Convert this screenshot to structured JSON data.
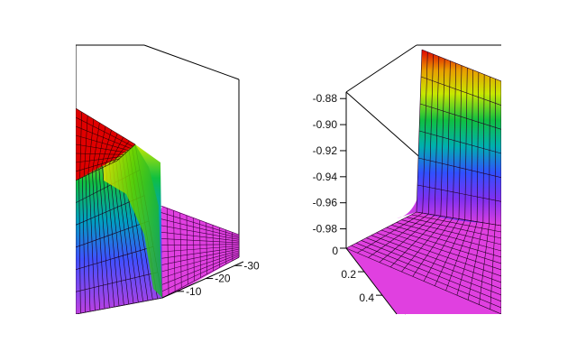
{
  "chart_data": [
    {
      "type": "surface",
      "panel": "left",
      "colormap": "rainbow (red high, magenta low)",
      "y_axis": {
        "ticks": [
          -30,
          -20,
          -10
        ],
        "tick_labels": [
          "-30",
          "-20",
          "-10"
        ]
      },
      "surface_shape": "high plateau dropping sharply to low plateau"
    },
    {
      "type": "surface",
      "panel": "right",
      "colormap": "rainbow (red high, magenta low)",
      "z_axis": {
        "ticks": [
          -0.88,
          -0.9,
          -0.92,
          -0.94,
          -0.96,
          -0.98
        ],
        "tick_labels": [
          "-0.88",
          "-0.90",
          "-0.92",
          "-0.94",
          "-0.96",
          "-0.98"
        ]
      },
      "x_axis": {
        "ticks": [
          0,
          0.2,
          0.4
        ],
        "tick_labels": [
          "0",
          "0.2",
          "0.4"
        ]
      },
      "surface_shape": "flat low plane rising sharply along one edge"
    }
  ],
  "colors": {
    "high": "#e00000",
    "mid_high": "#e8e800",
    "mid": "#00c000",
    "mid_low": "#00a0c0",
    "low_blue": "#4040ff",
    "low": "#e040e0",
    "grid": "#2a0030",
    "frame": "#000000"
  }
}
